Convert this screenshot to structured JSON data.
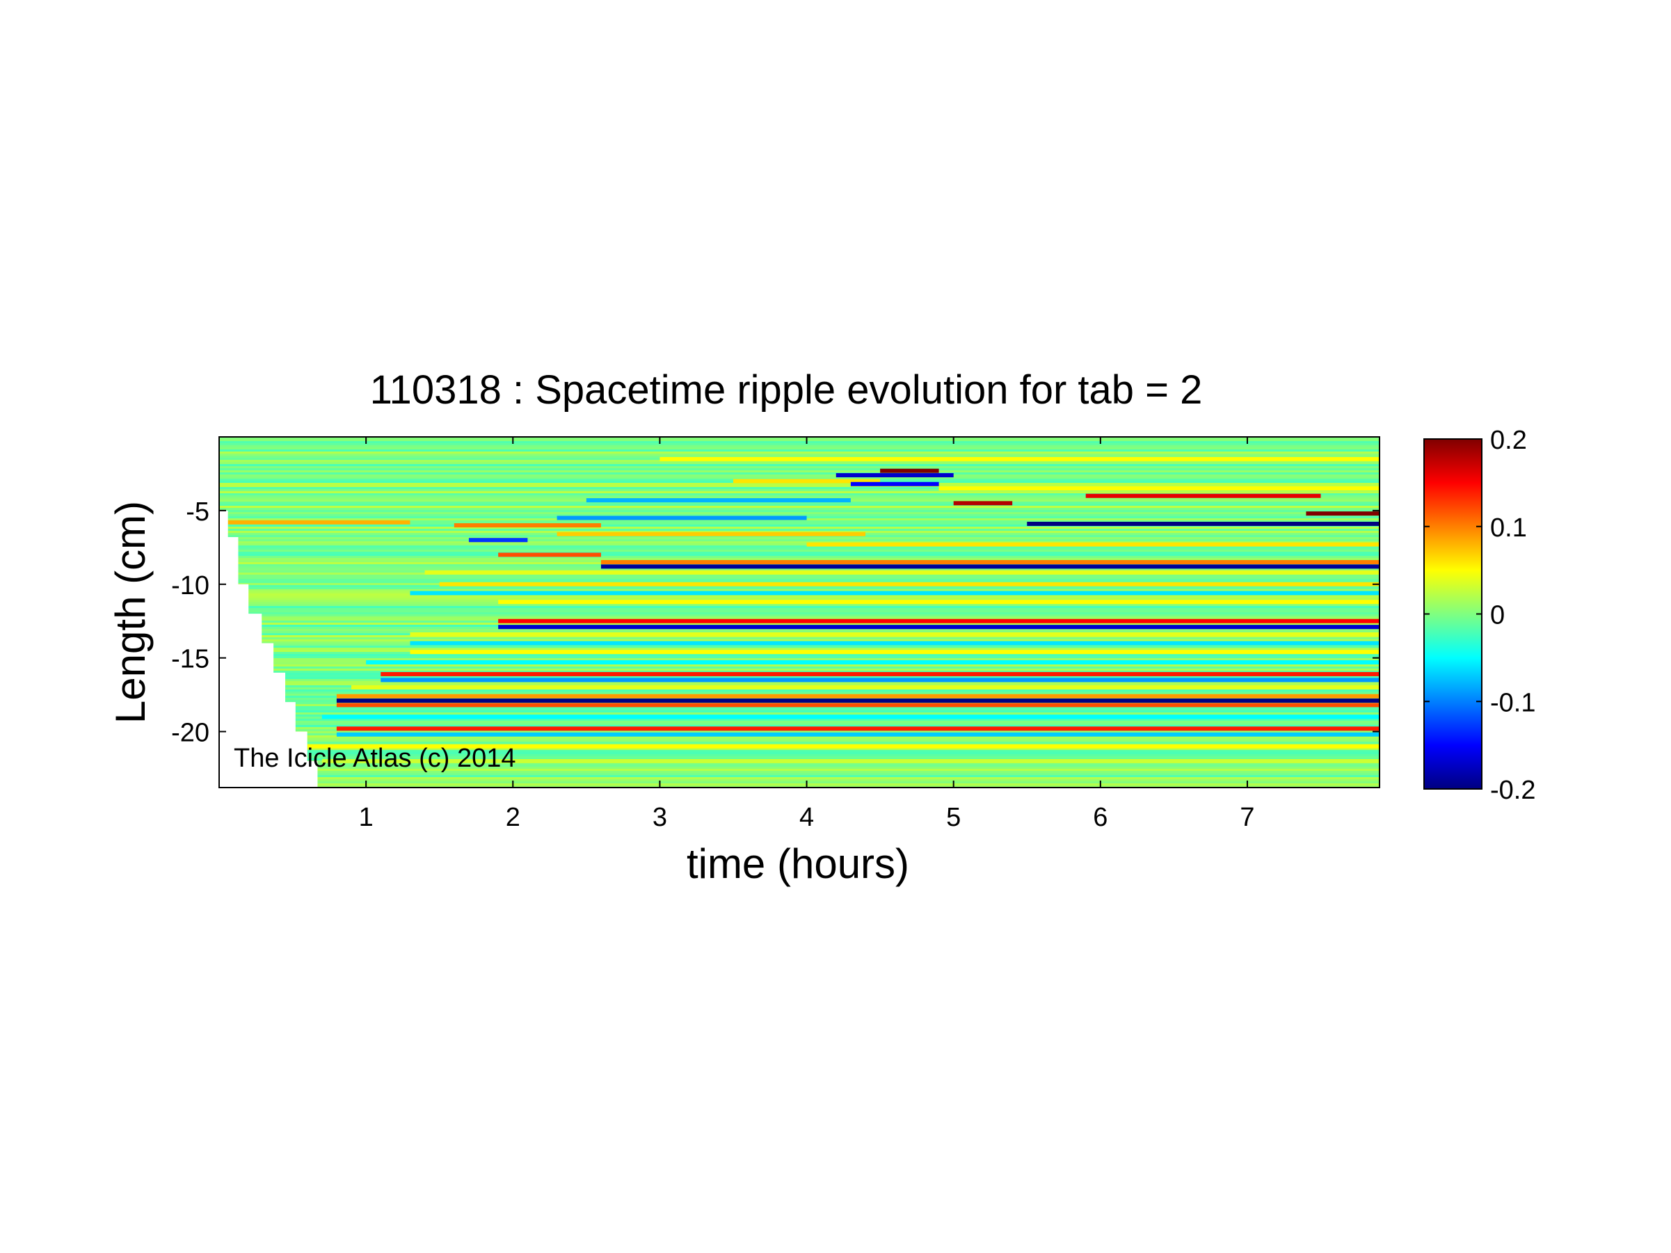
{
  "chart_data": {
    "type": "heatmap",
    "title": "110318 : Spacetime ripple evolution for tab = 2",
    "xlabel": "time (hours)",
    "ylabel": "Length (cm)",
    "xlim": [
      0,
      7.9
    ],
    "ylim": [
      -23.8,
      0
    ],
    "x_ticks": [
      1,
      2,
      3,
      4,
      5,
      6,
      7
    ],
    "y_ticks": [
      -5,
      -10,
      -15,
      -20
    ],
    "colorbar": {
      "colormap": "jet",
      "range": [
        -0.2,
        0.2
      ],
      "ticks": [
        0.2,
        0.1,
        0,
        -0.1,
        -0.2
      ],
      "tick_labels": [
        "0.2",
        "0.1",
        "0",
        "-0.1",
        "-0.2"
      ]
    },
    "growth_front": [
      [
        0.0,
        -1.2
      ],
      [
        0.06,
        -5.0
      ],
      [
        0.13,
        -6.8
      ],
      [
        0.2,
        -10.0
      ],
      [
        0.29,
        -12.0
      ],
      [
        0.37,
        -14.0
      ],
      [
        0.45,
        -16.0
      ],
      [
        0.52,
        -18.0
      ],
      [
        0.6,
        -20.0
      ],
      [
        0.67,
        -22.0
      ],
      [
        0.74,
        -23.8
      ]
    ],
    "features": [
      {
        "y": -1.5,
        "x_start": 3.0,
        "x_end": 7.9,
        "value": 0.05
      },
      {
        "y": -2.3,
        "x_start": 4.5,
        "x_end": 4.9,
        "value": 0.2
      },
      {
        "y": -2.6,
        "x_start": 4.2,
        "x_end": 5.0,
        "value": -0.17
      },
      {
        "y": -3.0,
        "x_start": 3.5,
        "x_end": 4.5,
        "value": 0.06
      },
      {
        "y": -3.2,
        "x_start": 4.3,
        "x_end": 4.9,
        "value": -0.15
      },
      {
        "y": -3.5,
        "x_start": 4.9,
        "x_end": 7.9,
        "value": 0.05
      },
      {
        "y": -4.0,
        "x_start": 5.9,
        "x_end": 7.5,
        "value": 0.16
      },
      {
        "y": -4.3,
        "x_start": 2.5,
        "x_end": 4.3,
        "value": -0.08
      },
      {
        "y": -4.5,
        "x_start": 5.0,
        "x_end": 5.4,
        "value": 0.18
      },
      {
        "y": -5.2,
        "x_start": 7.4,
        "x_end": 7.9,
        "value": 0.2
      },
      {
        "y": -5.5,
        "x_start": 2.3,
        "x_end": 4.0,
        "value": -0.09
      },
      {
        "y": -5.9,
        "x_start": 5.5,
        "x_end": 7.9,
        "value": -0.2
      },
      {
        "y": -5.8,
        "x_start": 0.06,
        "x_end": 1.3,
        "value": 0.08
      },
      {
        "y": -6.0,
        "x_start": 1.6,
        "x_end": 2.6,
        "value": 0.1
      },
      {
        "y": -6.6,
        "x_start": 2.3,
        "x_end": 4.4,
        "value": 0.07
      },
      {
        "y": -7.0,
        "x_start": 1.7,
        "x_end": 2.1,
        "value": -0.13
      },
      {
        "y": -7.3,
        "x_start": 4.0,
        "x_end": 7.9,
        "value": 0.06
      },
      {
        "y": -8.0,
        "x_start": 1.9,
        "x_end": 2.6,
        "value": 0.12
      },
      {
        "y": -8.5,
        "x_start": 2.6,
        "x_end": 7.9,
        "value": 0.1
      },
      {
        "y": -8.8,
        "x_start": 2.6,
        "x_end": 7.9,
        "value": -0.19
      },
      {
        "y": -9.2,
        "x_start": 1.4,
        "x_end": 7.9,
        "value": 0.04
      },
      {
        "y": -10.0,
        "x_start": 1.5,
        "x_end": 7.9,
        "value": 0.06
      },
      {
        "y": -10.6,
        "x_start": 1.3,
        "x_end": 7.9,
        "value": -0.06
      },
      {
        "y": -11.2,
        "x_start": 1.9,
        "x_end": 7.9,
        "value": 0.05
      },
      {
        "y": -12.5,
        "x_start": 1.9,
        "x_end": 7.9,
        "value": 0.15
      },
      {
        "y": -12.9,
        "x_start": 1.9,
        "x_end": 7.9,
        "value": -0.17
      },
      {
        "y": -13.4,
        "x_start": 1.3,
        "x_end": 7.9,
        "value": 0.04
      },
      {
        "y": -14.0,
        "x_start": 1.3,
        "x_end": 7.9,
        "value": -0.06
      },
      {
        "y": -14.6,
        "x_start": 1.3,
        "x_end": 7.9,
        "value": 0.05
      },
      {
        "y": -15.3,
        "x_start": 1.0,
        "x_end": 7.9,
        "value": -0.05
      },
      {
        "y": -16.1,
        "x_start": 1.1,
        "x_end": 7.9,
        "value": 0.14
      },
      {
        "y": -16.5,
        "x_start": 1.1,
        "x_end": 7.9,
        "value": -0.09
      },
      {
        "y": -17.0,
        "x_start": 0.9,
        "x_end": 7.9,
        "value": 0.04
      },
      {
        "y": -17.6,
        "x_start": 0.8,
        "x_end": 7.9,
        "value": 0.09
      },
      {
        "y": -17.9,
        "x_start": 0.8,
        "x_end": 7.9,
        "value": -0.2
      },
      {
        "y": -18.2,
        "x_start": 0.8,
        "x_end": 7.9,
        "value": 0.12
      },
      {
        "y": -19.0,
        "x_start": 0.7,
        "x_end": 7.9,
        "value": -0.05
      },
      {
        "y": -19.8,
        "x_start": 0.8,
        "x_end": 7.9,
        "value": 0.14
      },
      {
        "y": -20.2,
        "x_start": 0.8,
        "x_end": 7.9,
        "value": -0.07
      },
      {
        "y": -21.0,
        "x_start": 0.6,
        "x_end": 7.9,
        "value": 0.05
      },
      {
        "y": -22.0,
        "x_start": 0.7,
        "x_end": 7.9,
        "value": 0.03
      }
    ],
    "annotation": "The Icicle Atlas (c) 2014"
  }
}
